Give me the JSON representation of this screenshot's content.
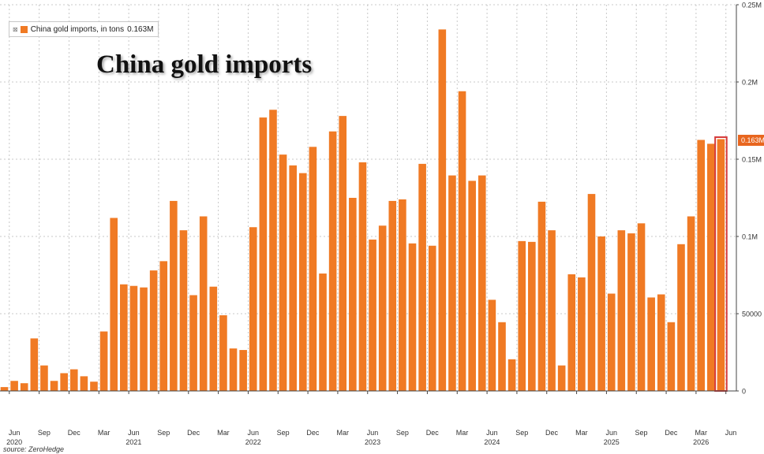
{
  "colors": {
    "bar": "#f07a24",
    "highlight": "#d63a3a",
    "badge": "#e8661f",
    "grid": "#c8c8c8",
    "axis": "#444444"
  },
  "title": "China gold imports",
  "legend": {
    "close_icon": "close-icon",
    "label": "China gold imports, in tons",
    "value": "0.163M"
  },
  "last_value_badge": "0.163M",
  "source": "source: ZeroHedge",
  "chart_data": {
    "type": "bar",
    "title": "China gold imports",
    "series": [
      {
        "name": "China gold imports, in tons",
        "values": [
          2500,
          6500,
          5000,
          34000,
          16500,
          6500,
          11500,
          14000,
          9500,
          6000,
          38500,
          112000,
          69000,
          68000,
          67000,
          78000,
          84000,
          123000,
          104000,
          62000,
          113000,
          67500,
          49000,
          27500,
          26500,
          106000,
          177000,
          182000,
          153000,
          146000,
          141000,
          158000,
          76000,
          168000,
          178000,
          125000,
          148000,
          98000,
          107000,
          123000,
          124000,
          95500,
          147000,
          94000,
          234000,
          139500,
          194000,
          136000,
          139500,
          59000,
          44500,
          20500,
          97000,
          96500,
          122500,
          104000,
          16500,
          75500,
          73500,
          127500,
          100000,
          63000,
          104000,
          102000,
          108500,
          60500,
          62500,
          44500,
          95000,
          113000,
          162500,
          160000,
          163000
        ]
      }
    ],
    "months": [
      "2020-05",
      "2020-06",
      "2020-07",
      "2020-08",
      "2020-09",
      "2020-10",
      "2020-11",
      "2020-12",
      "2021-01",
      "2021-02",
      "2021-03",
      "2021-04",
      "2021-05",
      "2021-06",
      "2021-07",
      "2021-08",
      "2021-09",
      "2021-10",
      "2021-11",
      "2021-12",
      "2022-01",
      "2022-02",
      "2022-03",
      "2022-04",
      "2022-05",
      "2022-06",
      "2022-07",
      "2022-08",
      "2022-09",
      "2022-10",
      "2022-11",
      "2022-12",
      "2023-01",
      "2023-02",
      "2023-03",
      "2023-04",
      "2023-05",
      "2023-06",
      "2023-07",
      "2023-08",
      "2023-09",
      "2023-10",
      "2023-11",
      "2023-12",
      "2024-01",
      "2024-02",
      "2024-03",
      "2024-04",
      "2024-05",
      "2024-06",
      "2024-07",
      "2024-08",
      "2024-09",
      "2024-10",
      "2024-11",
      "2024-12",
      "2025-01",
      "2025-02",
      "2025-03",
      "2025-04",
      "2025-05",
      "2025-06",
      "2025-07",
      "2025-08",
      "2025-09",
      "2025-10",
      "2025-11",
      "2025-12",
      "2026-01",
      "2026-02",
      "2026-03",
      "2026-04",
      "2026-05"
    ],
    "x_ticks": [
      {
        "month": "Jun",
        "year": "2020"
      },
      {
        "month": "Sep",
        "year": ""
      },
      {
        "month": "Dec",
        "year": ""
      },
      {
        "month": "Mar",
        "year": ""
      },
      {
        "month": "Jun",
        "year": "2021"
      },
      {
        "month": "Sep",
        "year": ""
      },
      {
        "month": "Dec",
        "year": ""
      },
      {
        "month": "Mar",
        "year": ""
      },
      {
        "month": "Jun",
        "year": "2022"
      },
      {
        "month": "Sep",
        "year": ""
      },
      {
        "month": "Dec",
        "year": ""
      },
      {
        "month": "Mar",
        "year": ""
      },
      {
        "month": "Jun",
        "year": "2023"
      },
      {
        "month": "Sep",
        "year": ""
      },
      {
        "month": "Dec",
        "year": ""
      },
      {
        "month": "Mar",
        "year": ""
      },
      {
        "month": "Jun",
        "year": "2024"
      },
      {
        "month": "Sep",
        "year": ""
      },
      {
        "month": "Dec",
        "year": ""
      },
      {
        "month": "Mar",
        "year": ""
      },
      {
        "month": "Jun",
        "year": "2025"
      },
      {
        "month": "Sep",
        "year": ""
      },
      {
        "month": "Dec",
        "year": ""
      },
      {
        "month": "Mar",
        "year": "2026"
      },
      {
        "month": "Jun",
        "year": ""
      }
    ],
    "y_ticks": [
      {
        "value": 0,
        "label": "0"
      },
      {
        "value": 50000,
        "label": "50000"
      },
      {
        "value": 100000,
        "label": "0.1M"
      },
      {
        "value": 150000,
        "label": "0.15M"
      },
      {
        "value": 200000,
        "label": "0.2M"
      },
      {
        "value": 250000,
        "label": "0.25M"
      }
    ],
    "ylim": [
      0,
      250000
    ],
    "y_axis_side": "right",
    "grid": true,
    "highlight_last_bar": true,
    "legend_position": "top-left"
  }
}
